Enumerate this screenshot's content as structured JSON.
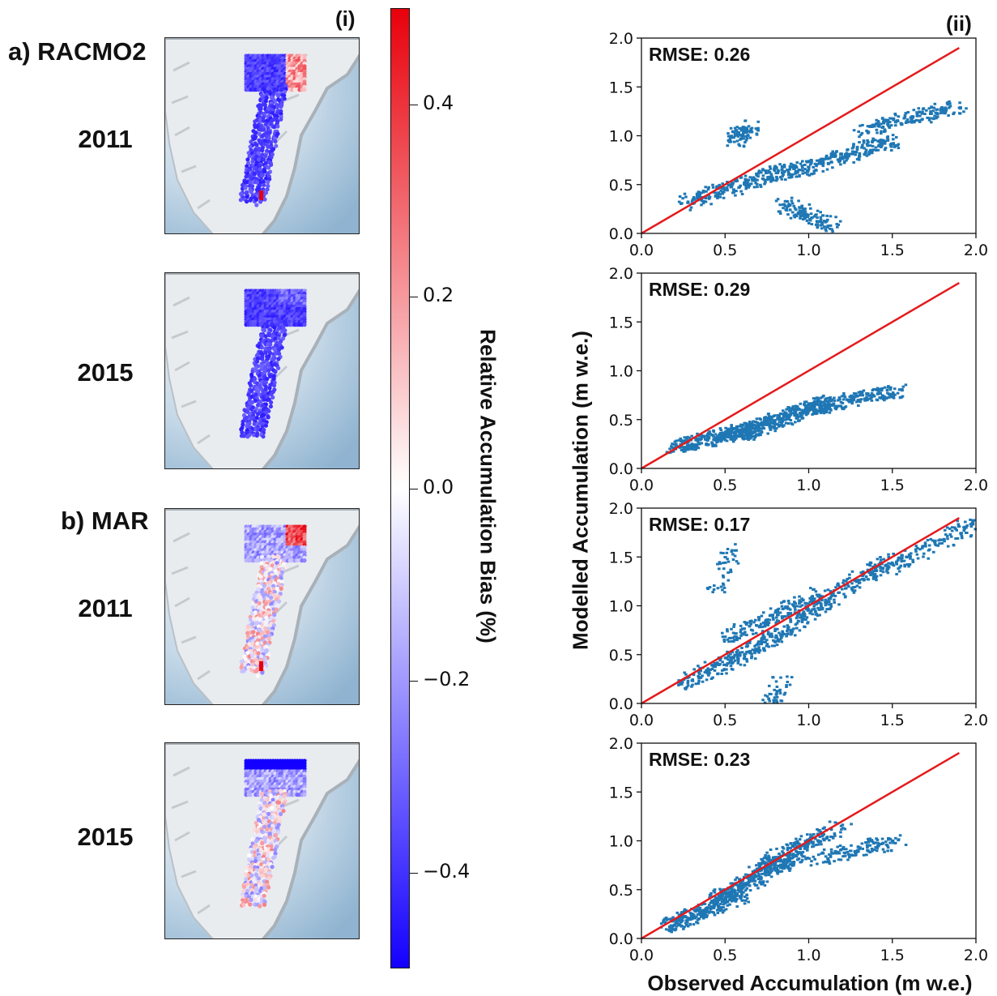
{
  "labels": {
    "panel_i": "(i)",
    "panel_ii": "(ii)",
    "model_a": "a) RACMO2",
    "model_b": "b) MAR",
    "year_1": "2011",
    "year_2": "2015",
    "year_3": "2011",
    "year_4": "2015"
  },
  "colorbar": {
    "title": "Relative Accumulation Bias (%)",
    "range": [
      -0.5,
      0.5
    ],
    "ticks": [
      "0.4",
      "0.2",
      "0.0",
      "−0.2",
      "−0.4"
    ],
    "tick_values": [
      0.4,
      0.2,
      0.0,
      -0.2,
      -0.4
    ],
    "colors": {
      "high": "#e8000b",
      "mid": "#ffffff",
      "low": "#1400ff"
    }
  },
  "maps": [
    {
      "model": "RACMO2",
      "year": "2011",
      "bias": "negative"
    },
    {
      "model": "RACMO2",
      "year": "2015",
      "bias": "negative"
    },
    {
      "model": "MAR",
      "year": "2011",
      "bias": "mixed"
    },
    {
      "model": "MAR",
      "year": "2015",
      "bias": "mixed"
    }
  ],
  "chart_data": [
    {
      "type": "scatter",
      "rmse_label": "RMSE: 0.26",
      "xlim": [
        0,
        2
      ],
      "ylim": [
        0,
        2
      ],
      "xticks": [
        "0.0",
        "0.5",
        "1.0",
        "1.5",
        "2.0"
      ],
      "yticks": [
        "0.0",
        "0.5",
        "1.0",
        "1.5",
        "2.0"
      ],
      "one_to_one_line": true,
      "point_color": "#1f77b4",
      "line_color": "#e41a1c",
      "clusters": [
        [
          0.25,
          0.3,
          0.85,
          0.65,
          0.25
        ],
        [
          0.85,
          0.6,
          1.5,
          0.95,
          0.3
        ],
        [
          1.3,
          1.05,
          1.9,
          1.3,
          0.2
        ],
        [
          0.55,
          0.95,
          0.65,
          1.1,
          0.1
        ],
        [
          0.85,
          0.3,
          1.15,
          0.08,
          0.15
        ]
      ]
    },
    {
      "type": "scatter",
      "rmse_label": "RMSE: 0.29",
      "xlim": [
        0,
        2
      ],
      "ylim": [
        0,
        2
      ],
      "xticks": [
        "0.0",
        "0.5",
        "1.0",
        "1.5",
        "2.0"
      ],
      "yticks": [
        "0.0",
        "0.5",
        "1.0",
        "1.5",
        "2.0"
      ],
      "one_to_one_line": true,
      "point_color": "#1f77b4",
      "line_color": "#e41a1c",
      "clusters": [
        [
          0.2,
          0.22,
          0.7,
          0.42,
          0.35
        ],
        [
          0.6,
          0.35,
          1.1,
          0.68,
          0.4
        ],
        [
          1.0,
          0.6,
          1.53,
          0.8,
          0.25
        ]
      ]
    },
    {
      "type": "scatter",
      "rmse_label": "RMSE: 0.17",
      "xlim": [
        0,
        2
      ],
      "ylim": [
        0,
        2
      ],
      "xticks": [
        "0.0",
        "0.5",
        "1.0",
        "1.5",
        "2.0"
      ],
      "yticks": [
        "0.0",
        "0.5",
        "1.0",
        "1.5",
        "2.0"
      ],
      "one_to_one_line": true,
      "point_color": "#1f77b4",
      "line_color": "#e41a1c",
      "clusters": [
        [
          0.25,
          0.2,
          0.9,
          0.75,
          0.3
        ],
        [
          0.5,
          0.65,
          1.1,
          1.15,
          0.2
        ],
        [
          0.9,
          0.8,
          1.5,
          1.5,
          0.25
        ],
        [
          1.4,
          1.3,
          2.0,
          1.85,
          0.15
        ],
        [
          0.45,
          1.15,
          0.55,
          1.6,
          0.05
        ],
        [
          0.75,
          0.0,
          0.85,
          0.25,
          0.05
        ]
      ]
    },
    {
      "type": "scatter",
      "rmse_label": "RMSE: 0.23",
      "xlim": [
        0,
        2
      ],
      "ylim": [
        0,
        2
      ],
      "xticks": [
        "0.0",
        "0.5",
        "1.0",
        "1.5",
        "2.0"
      ],
      "yticks": [
        "0.0",
        "0.5",
        "1.0",
        "1.5",
        "2.0"
      ],
      "one_to_one_line": true,
      "point_color": "#1f77b4",
      "line_color": "#e41a1c",
      "clusters": [
        [
          0.15,
          0.12,
          0.6,
          0.45,
          0.3
        ],
        [
          0.45,
          0.4,
          0.95,
          0.85,
          0.35
        ],
        [
          0.7,
          0.75,
          1.2,
          1.15,
          0.2
        ],
        [
          1.0,
          0.8,
          1.53,
          1.0,
          0.15
        ]
      ]
    }
  ],
  "axes": {
    "ylabel": "Modelled Accumulation (m w.e.)",
    "xlabel": "Observed Accumulation (m w.e.)"
  }
}
